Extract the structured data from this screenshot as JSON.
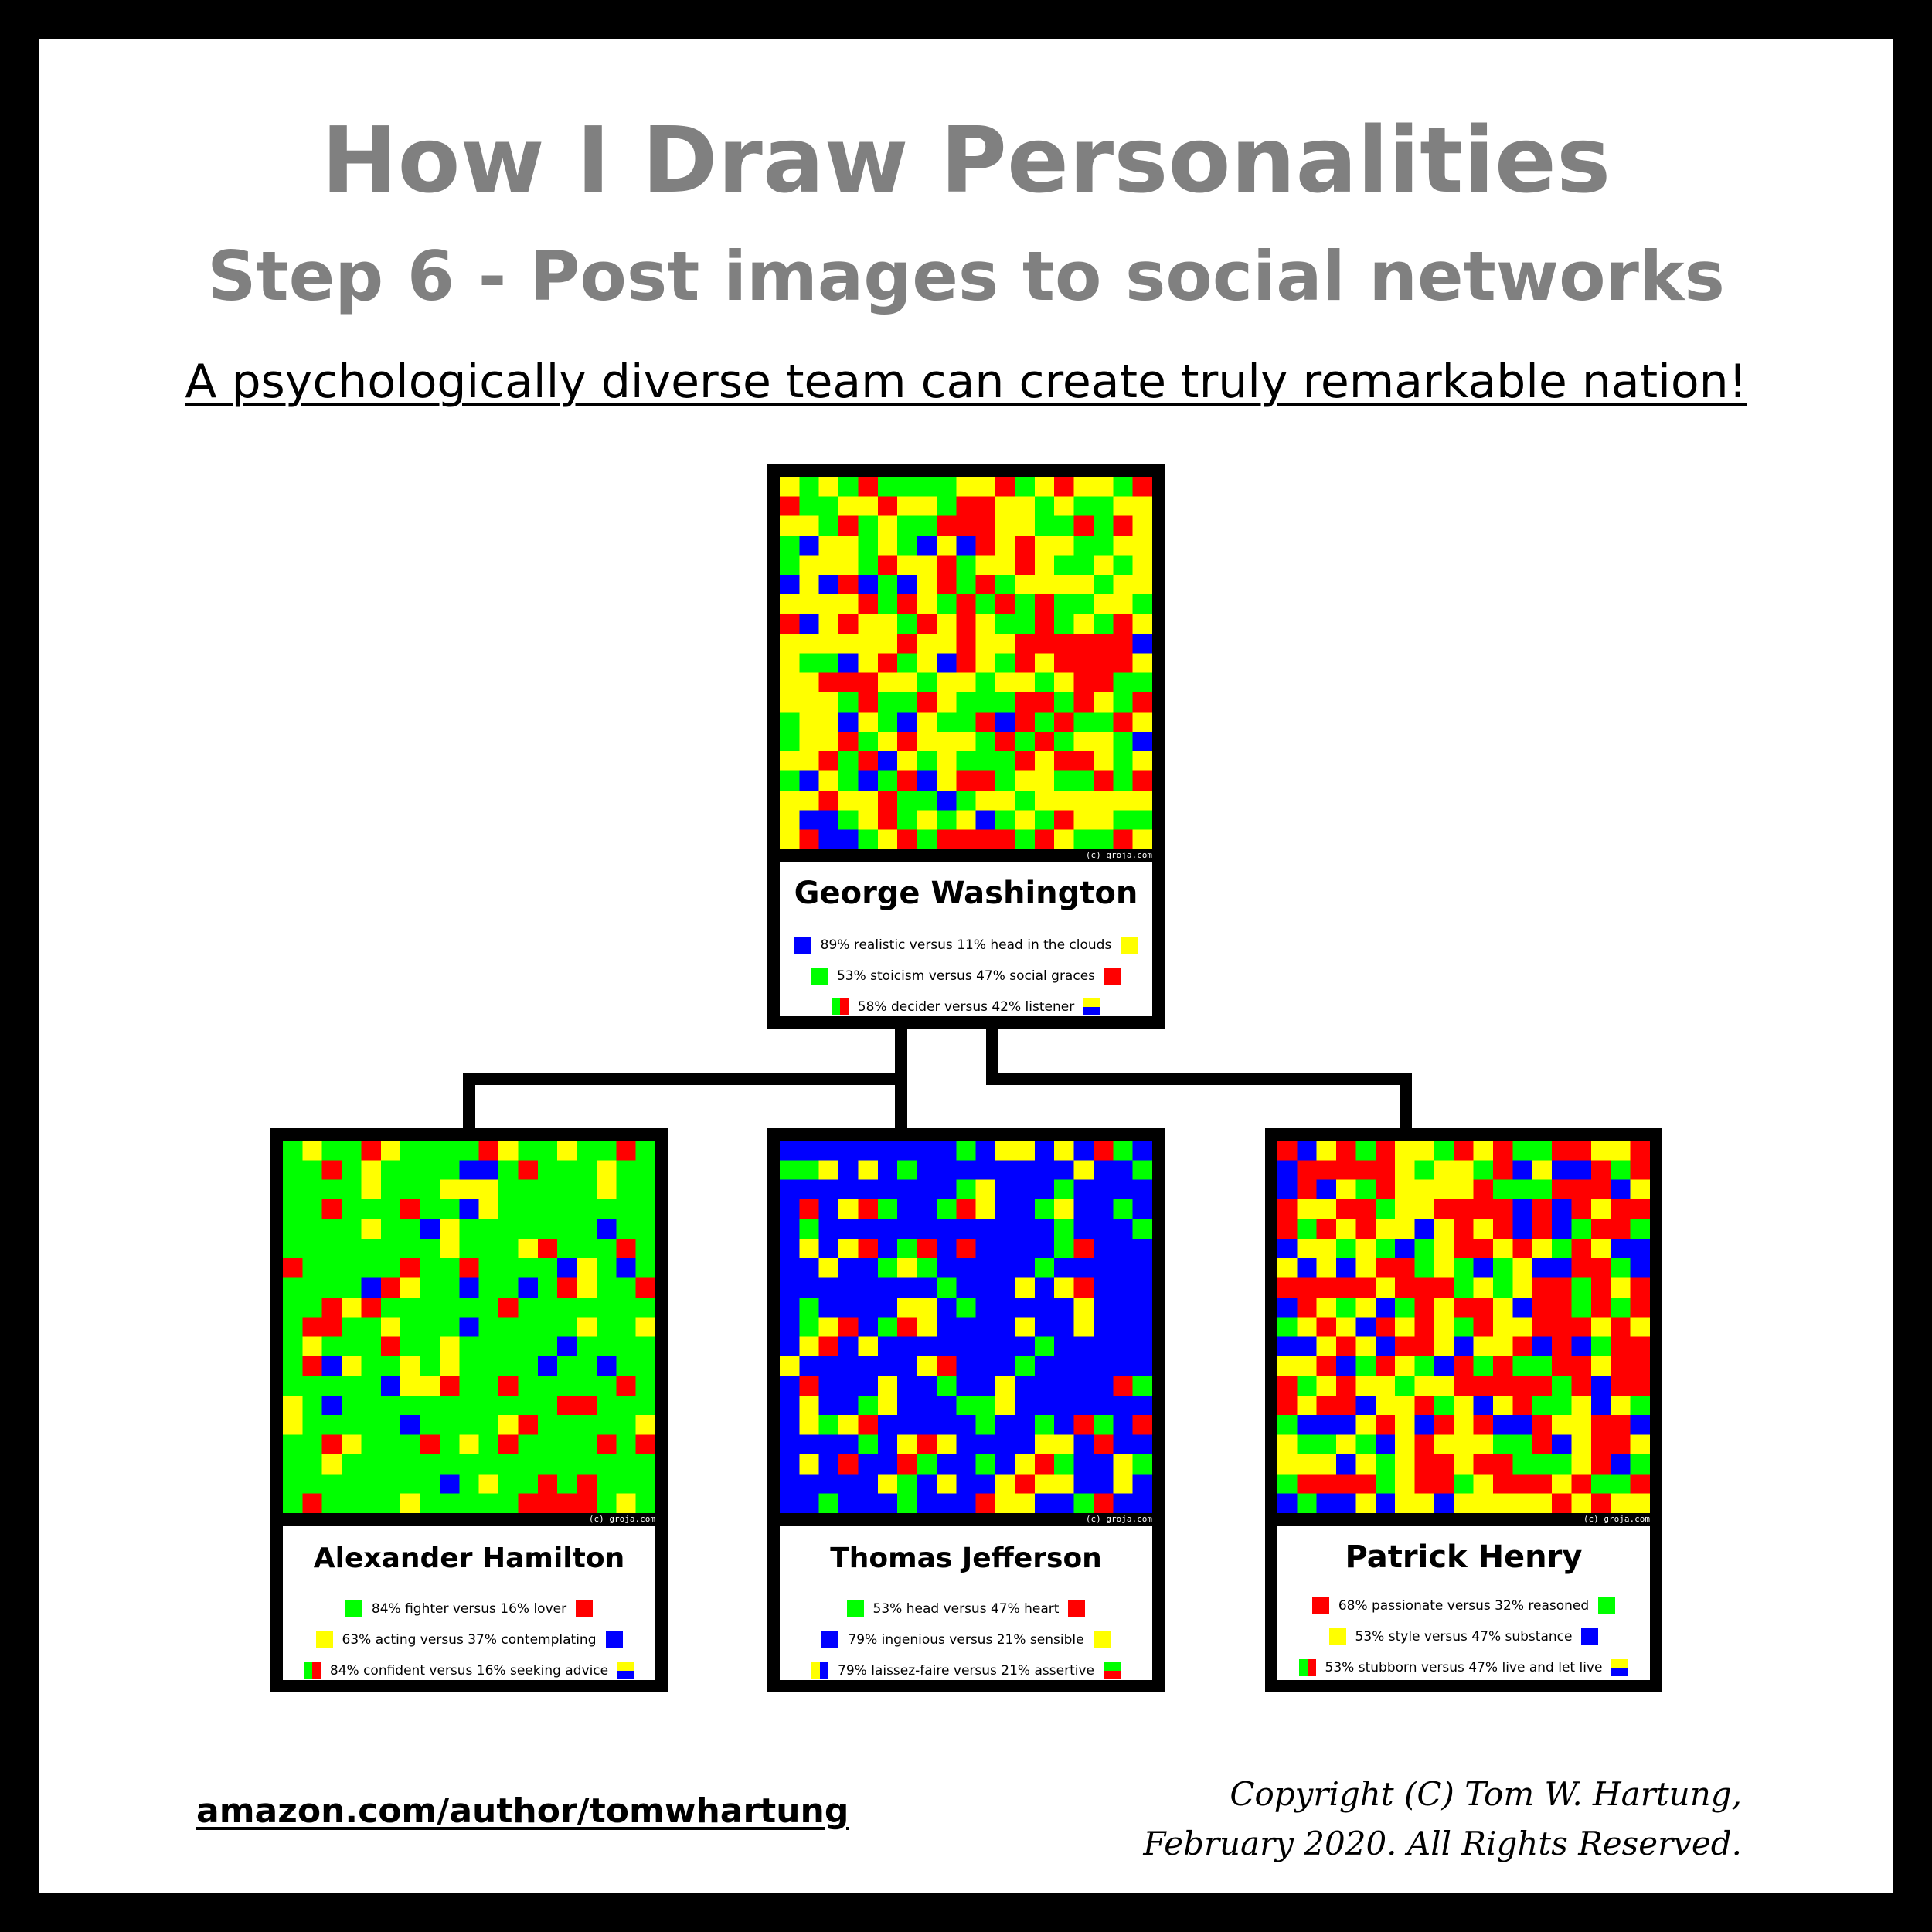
{
  "title": "How I Draw Personalities",
  "subtitle": "Step 6 - Post images to social networks",
  "tagline": "A psychologically diverse team can create truly remarkable nation!",
  "watermark": "(c) groja.com",
  "footer": {
    "link": "amazon.com/author/tomwhartung",
    "copyright_line1": "Copyright (C) Tom W. Hartung,",
    "copyright_line2": "February 2020. All Rights Reserved."
  },
  "colors": {
    "blue": "#0000ff",
    "green": "#00ff00",
    "yellow": "#ffff00",
    "red": "#ff0000",
    "border": "#000000",
    "title_gray": "#808080"
  },
  "people": [
    {
      "name": "George Washington",
      "traits": [
        {
          "text": "89% realistic versus 11% head in the clouds",
          "left": [
            "blue"
          ],
          "right": [
            "yellow"
          ]
        },
        {
          "text": "53% stoicism versus 47% social graces",
          "left": [
            "green"
          ],
          "right": [
            "red"
          ]
        },
        {
          "text": "58% decider versus 42% listener",
          "left": [
            "green",
            "red"
          ],
          "right": [
            "yellow",
            "blue"
          ]
        }
      ],
      "grid_mix": {
        "blue": 0.06,
        "green": 0.3,
        "yellow": 0.39,
        "red": 0.25
      }
    },
    {
      "name": "Alexander Hamilton",
      "traits": [
        {
          "text": "84% fighter versus 16% lover",
          "left": [
            "green"
          ],
          "right": [
            "red"
          ]
        },
        {
          "text": "63% acting versus 37% contemplating",
          "left": [
            "yellow"
          ],
          "right": [
            "blue"
          ]
        },
        {
          "text": "84% confident versus 16% seeking advice",
          "left": [
            "green",
            "red"
          ],
          "right": [
            "yellow",
            "blue"
          ]
        }
      ],
      "grid_mix": {
        "blue": 0.05,
        "green": 0.74,
        "yellow": 0.1,
        "red": 0.11
      }
    },
    {
      "name": "Thomas Jefferson",
      "traits": [
        {
          "text": "53% head versus 47% heart",
          "left": [
            "green"
          ],
          "right": [
            "red"
          ]
        },
        {
          "text": "79% ingenious versus 21% sensible",
          "left": [
            "blue"
          ],
          "right": [
            "yellow"
          ]
        },
        {
          "text": "79% laissez-faire versus 21% assertive",
          "left": [
            "yellow",
            "blue"
          ],
          "right": [
            "green",
            "red"
          ]
        }
      ],
      "grid_mix": {
        "blue": 0.7,
        "green": 0.09,
        "yellow": 0.14,
        "red": 0.07
      }
    },
    {
      "name": "Patrick Henry",
      "traits": [
        {
          "text": "68% passionate versus 32% reasoned",
          "left": [
            "red"
          ],
          "right": [
            "green"
          ]
        },
        {
          "text": "53% style versus 47% substance",
          "left": [
            "yellow"
          ],
          "right": [
            "blue"
          ]
        },
        {
          "text": "53% stubborn versus 47% live and let live",
          "left": [
            "green",
            "red"
          ],
          "right": [
            "yellow",
            "blue"
          ]
        }
      ],
      "grid_mix": {
        "blue": 0.14,
        "green": 0.2,
        "yellow": 0.32,
        "red": 0.34
      }
    }
  ]
}
